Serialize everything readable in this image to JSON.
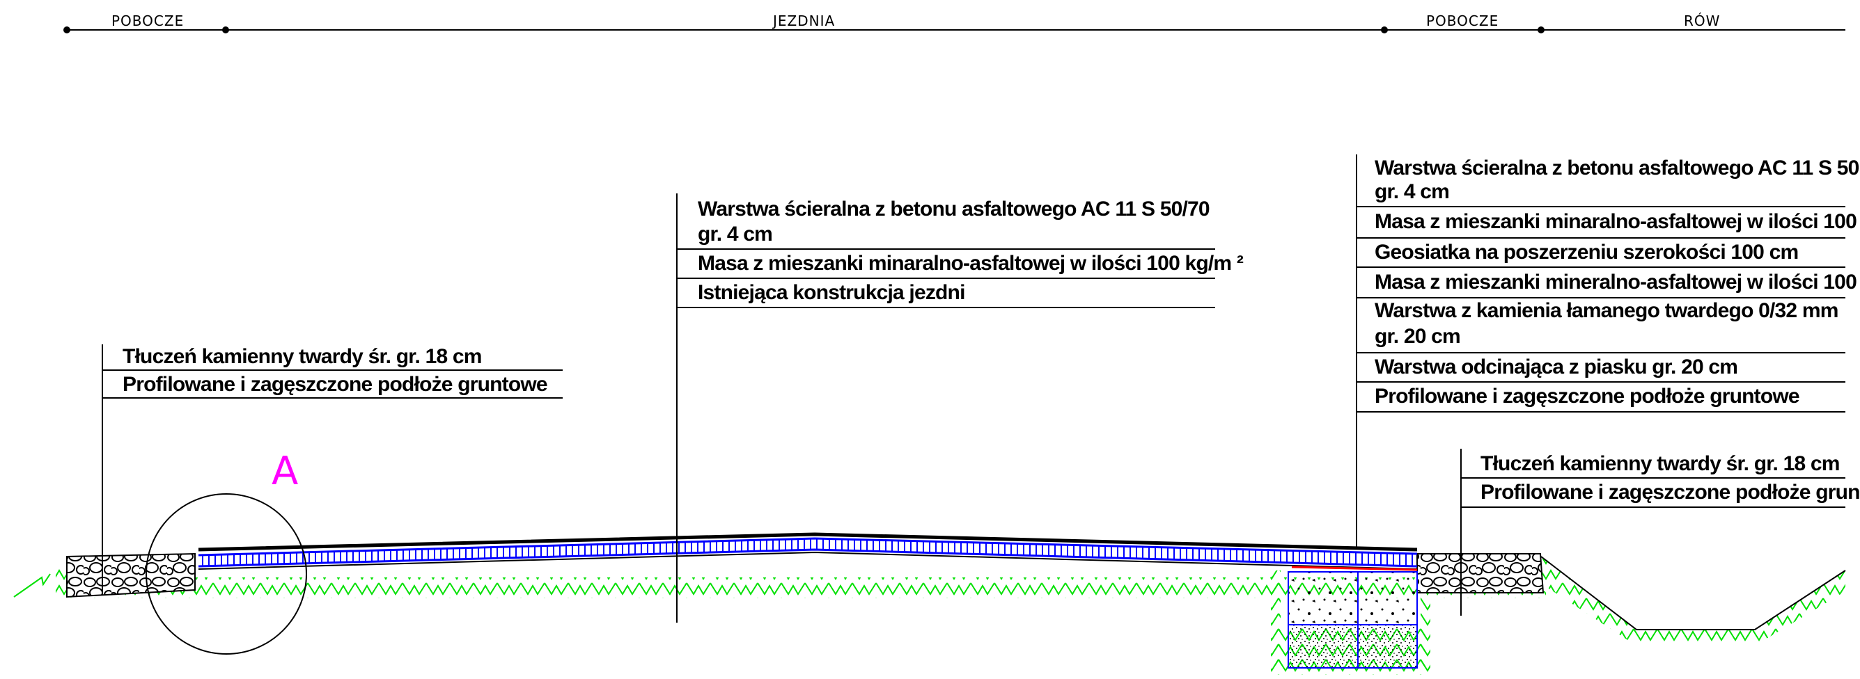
{
  "header_labels": {
    "left_shoulder": "POBOCZE",
    "roadway": "JEZDNIA",
    "right_shoulder": "POBOCZE",
    "ditch": "RÓW"
  },
  "marker": "A",
  "callouts": {
    "left_shoulder": [
      "Tłuczeń kamienny twardy śr. gr. 18 cm",
      "Profilowane i zagęszczone podłoże gruntowe"
    ],
    "roadway": [
      "Warstwa ścieralna z betonu asfaltowego AC 11 S 50/70",
      "gr. 4 cm",
      "Masa z mieszanki minaralno-asfaltowej w ilości 100 kg/m ²",
      "Istniejąca konstrukcja jezdni"
    ],
    "widening": [
      "Warstwa ścieralna z betonu asfaltowego AC 11 S 50",
      "gr. 4 cm",
      "Masa z mieszanki minaralno-asfaltowej w ilości 100",
      "Geosiatka na poszerzeniu szerokości 100 cm",
      "Masa z mieszanki mineralno-asfaltowej w ilości 100",
      "Warstwa z kamienia łamanego twardego 0/32 mm",
      "gr. 20 cm",
      "Warstwa odcinająca z piasku gr. 20 cm",
      "Profilowane i zagęszczone podłoże gruntowe"
    ],
    "right_shoulder": [
      "Tłuczeń kamienny twardy śr. gr. 18 cm",
      "Profilowane i zagęszczone podłoże grun"
    ]
  },
  "colors": {
    "line": "#000000",
    "ground_hatch": "#00e000",
    "layer_outline": "#0000ff",
    "geogrid": "#ff0000",
    "marker": "#ff00ff"
  }
}
